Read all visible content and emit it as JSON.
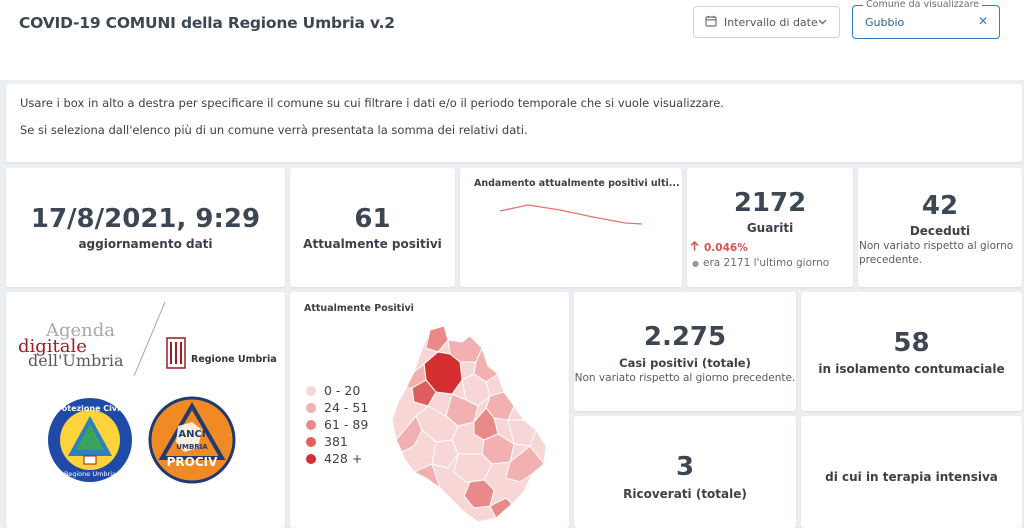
{
  "header": {
    "title": "COVID-19 COMUNI della Regione Umbria v.2",
    "date_filter_label": "Intervallo di date",
    "comune_filter_label": "Comune da visualizzare",
    "comune_value": "Gubbio",
    "clear_symbol": "✕"
  },
  "info": {
    "line1": "Usare i box in alto a destra per specificare il comune su cui filtrare i dati e/o il periodo temporale che si vuole visualizzare.",
    "line2": "Se si seleziona dall'elenco più di un comune verrà presentata la somma dei relativi dati."
  },
  "kpi": {
    "update_value": "17/8/2021, 9:29",
    "update_label": "aggiornamento dati",
    "positives_value": "61",
    "positives_label": "Attualmente positivi",
    "trend_title": "Andamento attualmente positivi ulti...",
    "guariti_value": "2172",
    "guariti_label": "Guariti",
    "guariti_delta": "0.046%",
    "guariti_prev": "era 2171 l'ultimo giorno",
    "deceduti_value": "42",
    "deceduti_label": "Deceduti",
    "deceduti_note": "Non variato rispetto al giorno precedente."
  },
  "logos": {
    "agenda_line1": "Agenda",
    "agenda_line2": "digitale",
    "agenda_line3": "dell'Umbria",
    "regione": "Regione Umbria",
    "protezione": "Protezione Civile",
    "protezione_sub": "Regione Umbria",
    "anci_top": "ANCI",
    "anci_mid": "UMBRIA",
    "anci_bottom": "PROCIV"
  },
  "map": {
    "title": "Attualmente Positivi",
    "legend": [
      {
        "label": "0 - 20",
        "color": "#f9d6d6"
      },
      {
        "label": "24 - 51",
        "color": "#f2b0b0"
      },
      {
        "label": "61 - 89",
        "color": "#ea8989"
      },
      {
        "label": "381",
        "color": "#e05e5e"
      },
      {
        "label": "428 +",
        "color": "#d32f2f"
      }
    ]
  },
  "stats": {
    "casi_value": "2.275",
    "casi_label": "Casi positivi (totale)",
    "casi_note": "Non variato rispetto al giorno precedente.",
    "isolamento_value": "58",
    "isolamento_label": "in isolamento contumaciale",
    "ricoverati_value": "3",
    "ricoverati_label": "Ricoverati (totale)",
    "intensiva_label": "di cui in terapia intensiva"
  },
  "colors": {
    "accent": "#2d7fc1",
    "trend_line": "#e57373",
    "delta_up": "#d9534f"
  },
  "icons": [
    "calendar-icon",
    "chevron-down-icon",
    "close-icon",
    "arrow-up-icon"
  ]
}
